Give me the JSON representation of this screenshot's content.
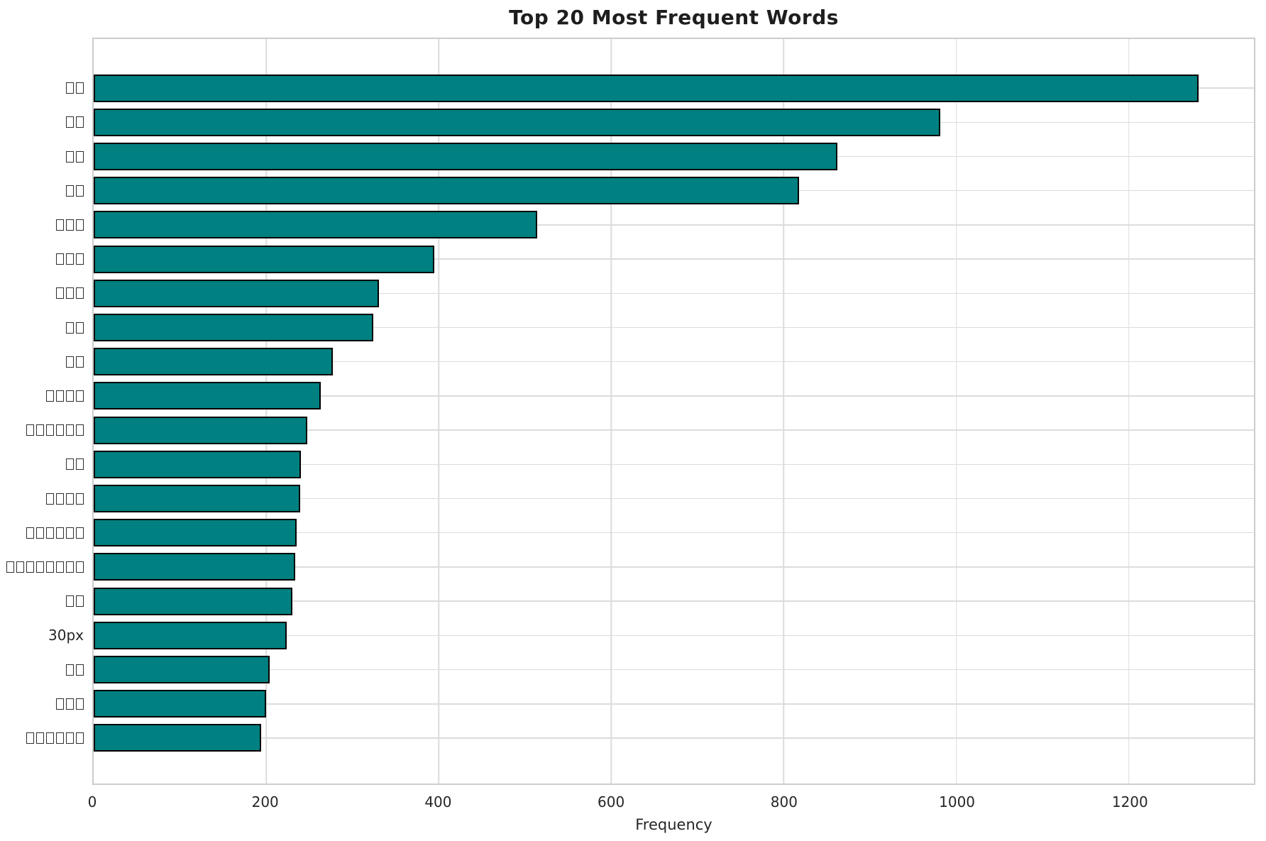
{
  "chart_data": {
    "type": "bar",
    "orientation": "horizontal",
    "title": "Top 20 Most Frequent Words",
    "xlabel": "Frequency",
    "ylabel": "",
    "categories": [
      "□□",
      "□□",
      "□□",
      "□□",
      "□□□",
      "□□□",
      "□□□",
      "□□",
      "□□",
      "□□□□",
      "□□□□□□",
      "□□",
      "□□□□",
      "□□□□□□",
      "□□□□□□□□",
      "□□",
      "30px",
      "□□",
      "□□□",
      "□□□□□□"
    ],
    "category_note": "□ = unrendered CJK glyph (tofu box) as shown in pixels",
    "values": [
      1281,
      981,
      862,
      818,
      514,
      395,
      331,
      324,
      277,
      263,
      248,
      240,
      239,
      235,
      234,
      230,
      224,
      204,
      200,
      194
    ],
    "xticks": [
      0,
      200,
      400,
      600,
      800,
      1000,
      1200
    ],
    "xtick_labels": [
      "0",
      "200",
      "400",
      "600",
      "800",
      "1000",
      "1200"
    ],
    "xlim": [
      0,
      1345
    ],
    "grid": true,
    "legend": false,
    "colors": {
      "bar_fill": "#008080",
      "bar_edge": "#000000",
      "grid_line": "#dcdcdc",
      "plot_border": "#cccccc",
      "text": "#262626",
      "title_text": "#1e1e1e",
      "background": "#ffffff"
    }
  }
}
